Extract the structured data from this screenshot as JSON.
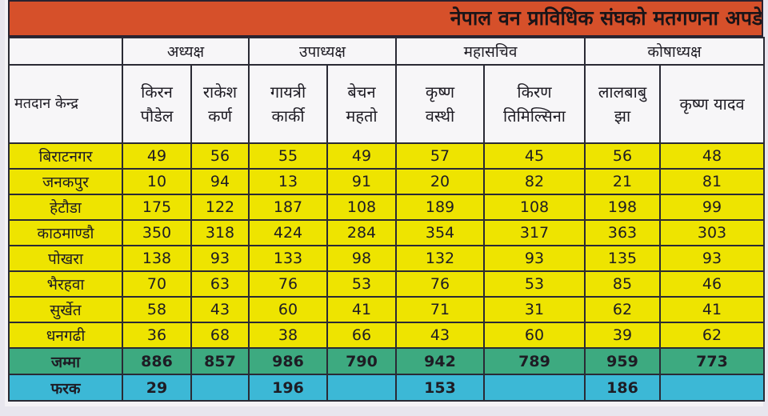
{
  "title": "नेपाल वन प्राविधिक संघको मतगणना अपडेट",
  "header": {
    "center_label": "मतदान केन्द्र",
    "groups": [
      "अध्यक्ष",
      "उपाध्यक्ष",
      "महासचिव",
      "कोषाध्यक्ष"
    ],
    "candidates": [
      {
        "line1": "किरन",
        "line2": "पौडेल"
      },
      {
        "line1": "राकेश",
        "line2": "कर्ण"
      },
      {
        "line1": "गायत्री",
        "line2": "कार्की"
      },
      {
        "line1": "बेचन",
        "line2": "महतो"
      },
      {
        "line1": "कृष्ण",
        "line2": "वस्थी"
      },
      {
        "line1": "किरण",
        "line2": "तिमिल्सिना"
      },
      {
        "line1": "लालबाबु",
        "line2": "झा"
      },
      {
        "line1": "कृष्ण यादव",
        "line2": ""
      }
    ]
  },
  "rows": [
    {
      "name": "बिराटनगर",
      "v": [
        "49",
        "56",
        "55",
        "49",
        "57",
        "45",
        "56",
        "48"
      ]
    },
    {
      "name": "जनकपुर",
      "v": [
        "10",
        "94",
        "13",
        "91",
        "20",
        "82",
        "21",
        "81"
      ]
    },
    {
      "name": "हेटौडा",
      "v": [
        "175",
        "122",
        "187",
        "108",
        "189",
        "108",
        "198",
        "99"
      ]
    },
    {
      "name": "काठमाण्डौ",
      "v": [
        "350",
        "318",
        "424",
        "284",
        "354",
        "317",
        "363",
        "303"
      ]
    },
    {
      "name": "पोखरा",
      "v": [
        "138",
        "93",
        "133",
        "98",
        "132",
        "93",
        "135",
        "93"
      ]
    },
    {
      "name": "भैरहवा",
      "v": [
        "70",
        "63",
        "76",
        "53",
        "76",
        "53",
        "85",
        "46"
      ]
    },
    {
      "name": "सुर्खेत",
      "v": [
        "58",
        "43",
        "60",
        "41",
        "71",
        "31",
        "62",
        "41"
      ]
    },
    {
      "name": "धनगढी",
      "v": [
        "36",
        "68",
        "38",
        "66",
        "43",
        "60",
        "39",
        "62"
      ]
    }
  ],
  "total": {
    "label": "जम्मा",
    "v": [
      "886",
      "857",
      "986",
      "790",
      "942",
      "789",
      "959",
      "773"
    ]
  },
  "diff": {
    "label": "फरक",
    "v": [
      "29",
      "",
      "196",
      "",
      "153",
      "",
      "186",
      ""
    ]
  }
}
